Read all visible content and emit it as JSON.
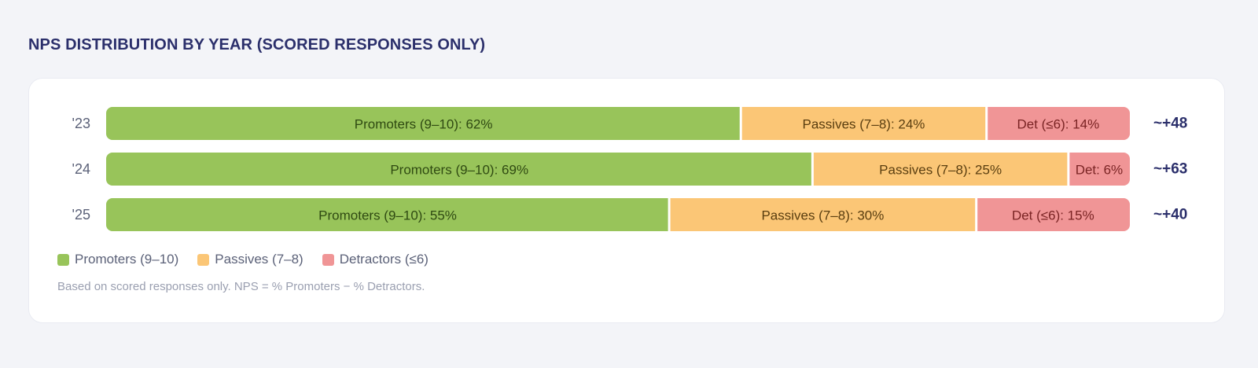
{
  "page": {
    "title": "NPS DISTRIBUTION BY YEAR (SCORED RESPONSES ONLY)"
  },
  "colors": {
    "promoters": "#98c45a",
    "passives": "#fbc676",
    "detractors": "#f09596",
    "promoters_text": "#2f4a12",
    "passives_text": "#5a3e10",
    "detractors_text": "#7a2424"
  },
  "chart_data": {
    "type": "bar",
    "orientation": "horizontal",
    "stacked": true,
    "categories": [
      "'23",
      "'24",
      "'25"
    ],
    "series": [
      {
        "name": "Promoters (9–10)",
        "values": [
          62,
          69,
          55
        ]
      },
      {
        "name": "Passives (7–8)",
        "values": [
          24,
          25,
          30
        ]
      },
      {
        "name": "Detractors (≤6)",
        "values": [
          14,
          6,
          15
        ]
      }
    ],
    "segment_labels": [
      [
        "Promoters (9–10): 62%",
        "Passives (7–8): 24%",
        "Det (≤6): 14%"
      ],
      [
        "Promoters (9–10): 69%",
        "Passives (7–8): 25%",
        "Det: 6%"
      ],
      [
        "Promoters (9–10): 55%",
        "Passives (7–8): 30%",
        "Det (≤6): 15%"
      ]
    ],
    "nps_labels": [
      "~+48",
      "~+63",
      "~+40"
    ],
    "xlim": [
      0,
      100
    ],
    "legend_position": "bottom-left"
  },
  "legend": {
    "items": [
      {
        "label": "Promoters (9–10)",
        "color": "#98c45a"
      },
      {
        "label": "Passives (7–8)",
        "color": "#fbc676"
      },
      {
        "label": "Detractors (≤6)",
        "color": "#f09596"
      }
    ]
  },
  "footnote": "Based on scored responses only. NPS = % Promoters − % Detractors."
}
